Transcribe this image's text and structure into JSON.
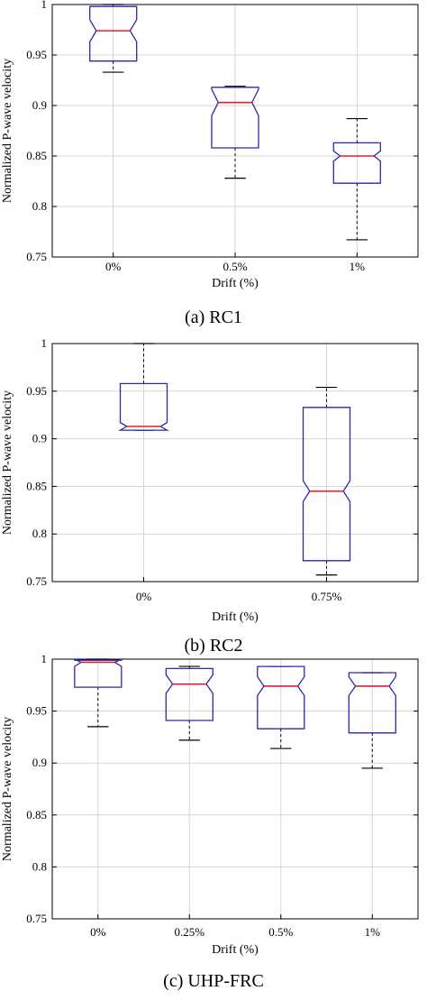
{
  "colors": {
    "box": "#2a2aa8",
    "median": "#e0202a",
    "whisker": "#000000",
    "grid": "#d6d6d6",
    "frame": "#000000"
  },
  "chart_data": [
    {
      "type": "box",
      "caption": "(a) RC1",
      "xlabel": "Drift (%)",
      "ylabel": "Normalized P-wave velocity",
      "ylim": [
        0.75,
        1.0
      ],
      "yticks": [
        0.75,
        0.8,
        0.85,
        0.9,
        0.95,
        1
      ],
      "ytick_labels": [
        "0.75",
        "0.8",
        "0.85",
        "0.9",
        "0.95",
        "1"
      ],
      "grid": true,
      "notched": true,
      "categories": [
        "0%",
        "0.5%",
        "1%"
      ],
      "boxes": [
        {
          "whisker_low": 0.933,
          "q1": 0.944,
          "notch_low": 0.963,
          "median": 0.974,
          "notch_high": 0.985,
          "q3": 0.998,
          "whisker_high": 1.0
        },
        {
          "whisker_low": 0.828,
          "q1": 0.858,
          "notch_low": 0.89,
          "median": 0.903,
          "notch_high": 0.916,
          "q3": 0.918,
          "whisker_high": 0.919
        },
        {
          "whisker_low": 0.767,
          "q1": 0.823,
          "notch_low": 0.845,
          "median": 0.85,
          "notch_high": 0.855,
          "q3": 0.863,
          "whisker_high": 0.887
        }
      ]
    },
    {
      "type": "box",
      "caption": "(b) RC2",
      "xlabel": "Drift (%)",
      "ylabel": "Normalized P-wave velocity",
      "ylim": [
        0.75,
        1.0
      ],
      "yticks": [
        0.75,
        0.8,
        0.85,
        0.9,
        0.95,
        1
      ],
      "ytick_labels": [
        "0.75",
        "0.8",
        "0.85",
        "0.9",
        "0.95",
        "1"
      ],
      "grid": true,
      "notched": true,
      "categories": [
        "0%",
        "0.75%"
      ],
      "boxes": [
        {
          "whisker_low": 0.909,
          "q1": 0.909,
          "notch_low": 0.909,
          "median": 0.913,
          "notch_high": 0.917,
          "q3": 0.958,
          "whisker_high": 1.0
        },
        {
          "whisker_low": 0.757,
          "q1": 0.772,
          "notch_low": 0.834,
          "median": 0.845,
          "notch_high": 0.856,
          "q3": 0.933,
          "whisker_high": 0.954
        }
      ]
    },
    {
      "type": "box",
      "caption": "(c) UHP-FRC",
      "xlabel": "Drift (%)",
      "ylabel": "Normalized P-wave velocity",
      "ylim": [
        0.75,
        1.0
      ],
      "yticks": [
        0.75,
        0.8,
        0.85,
        0.9,
        0.95,
        1
      ],
      "ytick_labels": [
        "0.75",
        "0.8",
        "0.85",
        "0.9",
        "0.95",
        "1"
      ],
      "grid": true,
      "notched": true,
      "categories": [
        "0%",
        "0.25%",
        "0.5%",
        "1%"
      ],
      "boxes": [
        {
          "whisker_low": 0.935,
          "q1": 0.973,
          "notch_low": 0.993,
          "median": 0.997,
          "notch_high": 1.0,
          "q3": 0.999,
          "whisker_high": 1.0
        },
        {
          "whisker_low": 0.922,
          "q1": 0.941,
          "notch_low": 0.967,
          "median": 0.976,
          "notch_high": 0.985,
          "q3": 0.991,
          "whisker_high": 0.993
        },
        {
          "whisker_low": 0.914,
          "q1": 0.933,
          "notch_low": 0.965,
          "median": 0.974,
          "notch_high": 0.983,
          "q3": 0.993,
          "whisker_high": 0.993
        },
        {
          "whisker_low": 0.895,
          "q1": 0.929,
          "notch_low": 0.965,
          "median": 0.974,
          "notch_high": 0.983,
          "q3": 0.987,
          "whisker_high": 0.987
        }
      ]
    }
  ]
}
